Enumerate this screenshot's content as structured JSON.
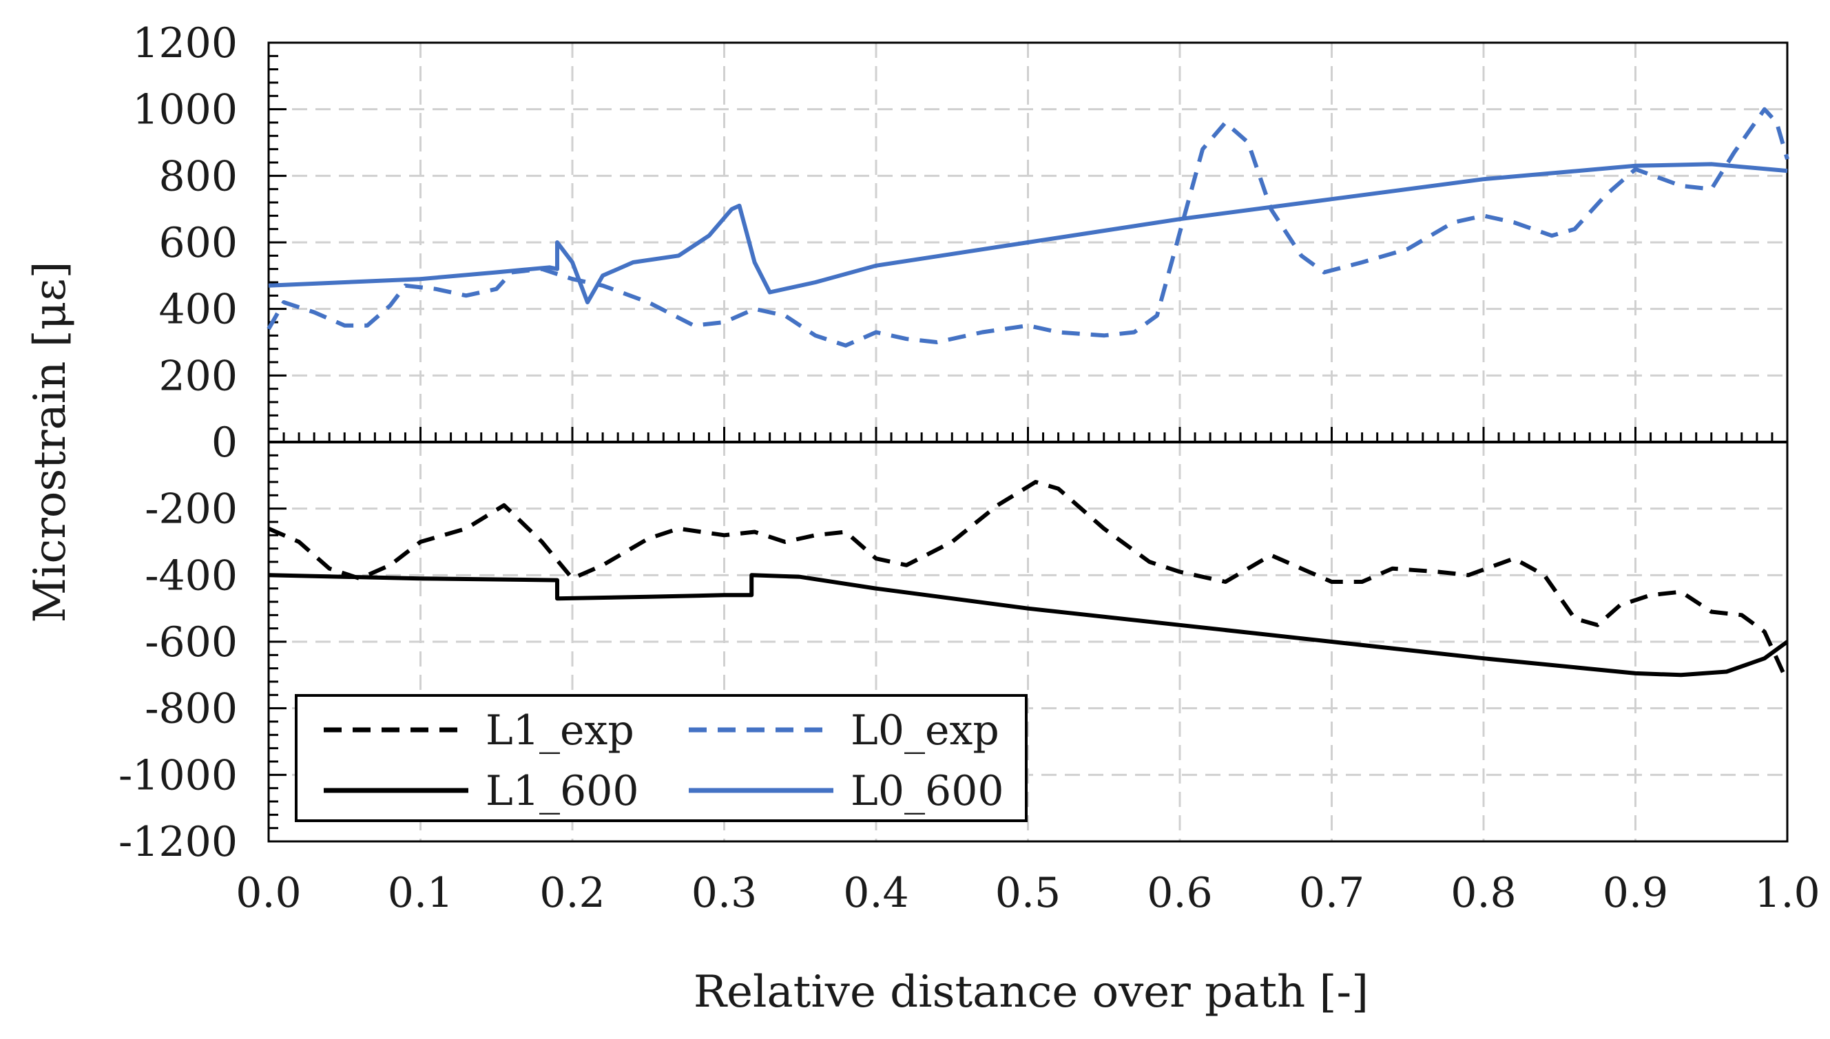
{
  "chart_data": {
    "type": "line",
    "title": "",
    "xlabel": "Relative distance over path [-]",
    "ylabel": "Microstrain [με]",
    "xlim": [
      0.0,
      1.0
    ],
    "ylim": [
      -1200,
      1200
    ],
    "x_ticks": [
      0.0,
      0.1,
      0.2,
      0.3,
      0.4,
      0.5,
      0.6,
      0.7,
      0.8,
      0.9,
      1.0
    ],
    "x_tick_labels": [
      "0.0",
      "0.1",
      "0.2",
      "0.3",
      "0.4",
      "0.5",
      "0.6",
      "0.7",
      "0.8",
      "0.9",
      "1.0"
    ],
    "y_ticks": [
      1200,
      1000,
      800,
      600,
      400,
      200,
      0,
      -200,
      -400,
      -600,
      -800,
      -1000,
      -1200
    ],
    "y_tick_labels": [
      "1200",
      "1000",
      "800",
      "600",
      "400",
      "200",
      "0",
      "-200",
      "-400",
      "-600",
      "-800",
      "-1000",
      "-1200"
    ],
    "grid": true,
    "legend_position": "bottom-left",
    "series": [
      {
        "name": "L1_exp",
        "color": "#000000",
        "style": "dashed",
        "points": [
          [
            0.0,
            -260
          ],
          [
            0.02,
            -300
          ],
          [
            0.04,
            -380
          ],
          [
            0.06,
            -410
          ],
          [
            0.08,
            -370
          ],
          [
            0.1,
            -300
          ],
          [
            0.13,
            -260
          ],
          [
            0.155,
            -190
          ],
          [
            0.18,
            -300
          ],
          [
            0.2,
            -410
          ],
          [
            0.22,
            -370
          ],
          [
            0.25,
            -290
          ],
          [
            0.27,
            -260
          ],
          [
            0.3,
            -280
          ],
          [
            0.32,
            -270
          ],
          [
            0.34,
            -300
          ],
          [
            0.36,
            -280
          ],
          [
            0.38,
            -270
          ],
          [
            0.4,
            -350
          ],
          [
            0.42,
            -370
          ],
          [
            0.45,
            -300
          ],
          [
            0.48,
            -190
          ],
          [
            0.505,
            -120
          ],
          [
            0.52,
            -140
          ],
          [
            0.55,
            -260
          ],
          [
            0.58,
            -360
          ],
          [
            0.6,
            -390
          ],
          [
            0.63,
            -420
          ],
          [
            0.66,
            -340
          ],
          [
            0.68,
            -380
          ],
          [
            0.7,
            -420
          ],
          [
            0.72,
            -420
          ],
          [
            0.74,
            -380
          ],
          [
            0.77,
            -390
          ],
          [
            0.79,
            -400
          ],
          [
            0.82,
            -350
          ],
          [
            0.84,
            -400
          ],
          [
            0.86,
            -530
          ],
          [
            0.875,
            -550
          ],
          [
            0.89,
            -490
          ],
          [
            0.91,
            -460
          ],
          [
            0.93,
            -450
          ],
          [
            0.95,
            -510
          ],
          [
            0.97,
            -520
          ],
          [
            0.985,
            -570
          ],
          [
            1.0,
            -720
          ]
        ]
      },
      {
        "name": "L0_exp",
        "color": "#4472c4",
        "style": "dashed",
        "points": [
          [
            0.0,
            340
          ],
          [
            0.01,
            420
          ],
          [
            0.03,
            390
          ],
          [
            0.05,
            350
          ],
          [
            0.065,
            350
          ],
          [
            0.08,
            410
          ],
          [
            0.09,
            470
          ],
          [
            0.11,
            460
          ],
          [
            0.13,
            440
          ],
          [
            0.15,
            460
          ],
          [
            0.16,
            510
          ],
          [
            0.18,
            520
          ],
          [
            0.2,
            490
          ],
          [
            0.22,
            470
          ],
          [
            0.25,
            420
          ],
          [
            0.28,
            350
          ],
          [
            0.3,
            360
          ],
          [
            0.32,
            400
          ],
          [
            0.34,
            380
          ],
          [
            0.36,
            320
          ],
          [
            0.38,
            290
          ],
          [
            0.4,
            330
          ],
          [
            0.42,
            310
          ],
          [
            0.44,
            300
          ],
          [
            0.47,
            330
          ],
          [
            0.5,
            350
          ],
          [
            0.52,
            330
          ],
          [
            0.55,
            320
          ],
          [
            0.57,
            330
          ],
          [
            0.585,
            380
          ],
          [
            0.6,
            630
          ],
          [
            0.615,
            880
          ],
          [
            0.63,
            960
          ],
          [
            0.645,
            900
          ],
          [
            0.66,
            700
          ],
          [
            0.68,
            560
          ],
          [
            0.695,
            510
          ],
          [
            0.72,
            540
          ],
          [
            0.75,
            580
          ],
          [
            0.78,
            660
          ],
          [
            0.8,
            680
          ],
          [
            0.82,
            660
          ],
          [
            0.845,
            620
          ],
          [
            0.86,
            640
          ],
          [
            0.88,
            740
          ],
          [
            0.9,
            820
          ],
          [
            0.93,
            770
          ],
          [
            0.95,
            760
          ],
          [
            0.965,
            870
          ],
          [
            0.985,
            1000
          ],
          [
            0.993,
            960
          ],
          [
            1.0,
            850
          ]
        ]
      },
      {
        "name": "L1_600",
        "color": "#000000",
        "style": "solid",
        "points": [
          [
            0.0,
            -400
          ],
          [
            0.1,
            -410
          ],
          [
            0.19,
            -415
          ],
          [
            0.19,
            -470
          ],
          [
            0.25,
            -465
          ],
          [
            0.3,
            -460
          ],
          [
            0.318,
            -460
          ],
          [
            0.318,
            -400
          ],
          [
            0.35,
            -405
          ],
          [
            0.4,
            -440
          ],
          [
            0.5,
            -500
          ],
          [
            0.6,
            -550
          ],
          [
            0.7,
            -600
          ],
          [
            0.8,
            -650
          ],
          [
            0.9,
            -695
          ],
          [
            0.93,
            -700
          ],
          [
            0.96,
            -690
          ],
          [
            0.985,
            -650
          ],
          [
            1.0,
            -600
          ]
        ]
      },
      {
        "name": "L0_600",
        "color": "#4472c4",
        "style": "solid",
        "points": [
          [
            0.0,
            470
          ],
          [
            0.1,
            490
          ],
          [
            0.15,
            510
          ],
          [
            0.185,
            525
          ],
          [
            0.19,
            520
          ],
          [
            0.19,
            600
          ],
          [
            0.2,
            540
          ],
          [
            0.21,
            420
          ],
          [
            0.22,
            500
          ],
          [
            0.24,
            540
          ],
          [
            0.27,
            560
          ],
          [
            0.29,
            620
          ],
          [
            0.305,
            700
          ],
          [
            0.31,
            710
          ],
          [
            0.32,
            540
          ],
          [
            0.33,
            450
          ],
          [
            0.36,
            480
          ],
          [
            0.4,
            530
          ],
          [
            0.5,
            600
          ],
          [
            0.6,
            670
          ],
          [
            0.7,
            730
          ],
          [
            0.8,
            790
          ],
          [
            0.9,
            830
          ],
          [
            0.95,
            835
          ],
          [
            1.0,
            815
          ]
        ]
      }
    ]
  }
}
